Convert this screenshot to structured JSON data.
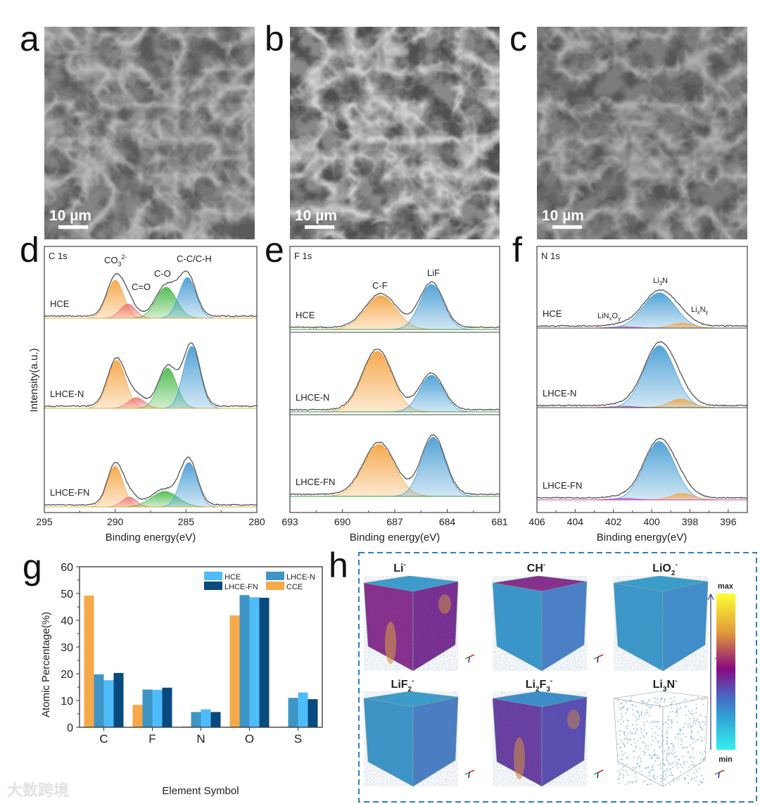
{
  "panel_letters": {
    "a": "a",
    "b": "b",
    "c": "c",
    "d": "d",
    "e": "e",
    "f": "f",
    "g": "g",
    "h": "h"
  },
  "sem": {
    "scale_bar": "10 µm"
  },
  "chart_data": [
    {
      "type": "line",
      "panel": "d",
      "title": "C 1s",
      "xlabel": "Binding energy(eV)",
      "ylabel": "Intensity(a.u.)",
      "xlim": [
        295,
        280
      ],
      "xticks": [
        295,
        290,
        285,
        280
      ],
      "annotations": [
        [
          "CO",
          "3",
          "2-"
        ],
        [
          "C=O"
        ],
        [
          "C-O"
        ],
        [
          "C-C/C-H"
        ]
      ],
      "samples": [
        {
          "name": "HCE",
          "peaks": [
            {
              "annotation": 0,
              "center": 290.0,
              "amp": 54,
              "fwhm": 1.4,
              "color": "#f5a646"
            },
            {
              "annotation": 1,
              "center": 289.1,
              "amp": 20,
              "fwhm": 1.3,
              "color": "#f07a7a"
            },
            {
              "annotation": 2,
              "center": 286.4,
              "amp": 44,
              "fwhm": 1.7,
              "color": "#4cbb4c"
            },
            {
              "annotation": 3,
              "center": 284.9,
              "amp": 58,
              "fwhm": 1.4,
              "color": "#4b9fd5"
            }
          ]
        },
        {
          "name": "LHCE-N",
          "peaks": [
            {
              "annotation": 0,
              "center": 289.9,
              "amp": 68,
              "fwhm": 1.5,
              "color": "#f5a646"
            },
            {
              "annotation": 1,
              "center": 288.5,
              "amp": 15,
              "fwhm": 1.4,
              "color": "#f07a7a"
            },
            {
              "annotation": 2,
              "center": 286.3,
              "amp": 57,
              "fwhm": 1.5,
              "color": "#4cbb4c"
            },
            {
              "annotation": 3,
              "center": 284.6,
              "amp": 88,
              "fwhm": 1.4,
              "color": "#4b9fd5"
            }
          ]
        },
        {
          "name": "LHCE-FN",
          "peaks": [
            {
              "annotation": 0,
              "center": 290.0,
              "amp": 58,
              "fwhm": 1.3,
              "color": "#f5a646"
            },
            {
              "annotation": 1,
              "center": 289.0,
              "amp": 14,
              "fwhm": 1.2,
              "color": "#f07a7a"
            },
            {
              "annotation": 2,
              "center": 286.5,
              "amp": 22,
              "fwhm": 2.2,
              "color": "#4cbb4c"
            },
            {
              "annotation": 3,
              "center": 284.8,
              "amp": 63,
              "fwhm": 1.4,
              "color": "#4b9fd5"
            }
          ]
        }
      ]
    },
    {
      "type": "line",
      "panel": "e",
      "title": "F 1s",
      "xlabel": "Binding energy(eV)",
      "xlim": [
        693,
        681
      ],
      "xticks": [
        693,
        690,
        687,
        684,
        681
      ],
      "annotations": [
        [
          "C-F"
        ],
        [
          "LiF"
        ]
      ],
      "samples": [
        {
          "name": "HCE",
          "peaks": [
            {
              "annotation": 0,
              "center": 687.8,
              "amp": 48,
              "fwhm": 2.1,
              "color": "#f5a646"
            },
            {
              "annotation": 1,
              "center": 684.9,
              "amp": 64,
              "fwhm": 1.6,
              "color": "#4b9fd5"
            }
          ]
        },
        {
          "name": "LHCE-N",
          "peaks": [
            {
              "annotation": 0,
              "center": 688.0,
              "amp": 86,
              "fwhm": 2.0,
              "color": "#f5a646"
            },
            {
              "annotation": 1,
              "center": 684.9,
              "amp": 52,
              "fwhm": 1.6,
              "color": "#4b9fd5"
            }
          ]
        },
        {
          "name": "LHCE-FN",
          "peaks": [
            {
              "annotation": 0,
              "center": 687.9,
              "amp": 74,
              "fwhm": 2.1,
              "color": "#f5a646"
            },
            {
              "annotation": 1,
              "center": 684.8,
              "amp": 84,
              "fwhm": 1.6,
              "color": "#4b9fd5"
            }
          ]
        }
      ]
    },
    {
      "type": "line",
      "panel": "f",
      "title": "N 1s",
      "xlabel": "Binding energy(eV)",
      "xlim": [
        406,
        395
      ],
      "xticks": [
        406,
        404,
        402,
        400,
        398,
        396
      ],
      "annotations": [
        [
          "Li",
          "3",
          "N"
        ],
        [
          "LiN",
          "x",
          "O",
          "y"
        ],
        [
          "Li",
          "x",
          "N",
          "y"
        ]
      ],
      "samples": [
        {
          "name": "HCE",
          "peaks": [
            {
              "annotation": 1,
              "center": 401.5,
              "amp": 2,
              "fwhm": 1.5,
              "color": "#d63aa8"
            },
            {
              "annotation": 0,
              "center": 399.6,
              "amp": 50,
              "fwhm": 2.0,
              "color": "#4b9fd5"
            },
            {
              "annotation": 2,
              "center": 398.4,
              "amp": 7,
              "fwhm": 1.4,
              "color": "#f5a646"
            }
          ]
        },
        {
          "name": "LHCE-N",
          "peaks": [
            {
              "annotation": 1,
              "center": 401.5,
              "amp": 2,
              "fwhm": 1.5,
              "color": "#d63aa8"
            },
            {
              "annotation": 0,
              "center": 399.6,
              "amp": 88,
              "fwhm": 1.9,
              "color": "#4b9fd5"
            },
            {
              "annotation": 2,
              "center": 398.5,
              "amp": 12,
              "fwhm": 1.4,
              "color": "#f5a646"
            }
          ]
        },
        {
          "name": "LHCE-FN",
          "peaks": [
            {
              "annotation": 1,
              "center": 401.5,
              "amp": 2,
              "fwhm": 1.5,
              "color": "#d63aa8"
            },
            {
              "annotation": 0,
              "center": 399.6,
              "amp": 83,
              "fwhm": 1.9,
              "color": "#4b9fd5"
            },
            {
              "annotation": 2,
              "center": 398.4,
              "amp": 9,
              "fwhm": 1.4,
              "color": "#f5a646"
            }
          ]
        }
      ]
    },
    {
      "type": "bar",
      "panel": "g",
      "xlabel": "Element Symbol",
      "ylabel": "Atomic Percentage(%)",
      "ylim": [
        0,
        60
      ],
      "yticks": [
        0,
        10,
        20,
        30,
        40,
        50,
        60
      ],
      "categories": [
        "C",
        "F",
        "N",
        "O",
        "S"
      ],
      "legend_position": "top-right",
      "series": [
        {
          "name": "CCE",
          "color": "#f5a94a",
          "values": [
            49.2,
            8.4,
            0.3,
            41.8,
            0.2
          ]
        },
        {
          "name": "LHCE-N",
          "color": "#3f95c6",
          "values": [
            19.8,
            14.1,
            5.7,
            49.4,
            11.0
          ]
        },
        {
          "name": "HCE",
          "color": "#4fbcfa",
          "values": [
            17.6,
            14.0,
            6.7,
            48.6,
            13.0
          ]
        },
        {
          "name": "LHCE-FN",
          "color": "#084a7e",
          "values": [
            20.3,
            14.8,
            5.7,
            48.4,
            10.5
          ]
        }
      ],
      "legend_order": [
        "HCE",
        "LHCE-N",
        "LHCE-FN",
        "CCE"
      ]
    }
  ],
  "tof_sims": {
    "labels": [
      [
        "Li",
        "-"
      ],
      [
        "CH",
        "-"
      ],
      [
        "LiO",
        "2",
        "-"
      ],
      [
        "LiF",
        "2",
        "-"
      ],
      [
        "Li",
        "2",
        "F",
        "3",
        "-"
      ],
      [
        "Li",
        "3",
        "N",
        "-"
      ]
    ],
    "colorbar": {
      "max": "max",
      "min": "min",
      "colors": [
        "#ffff33",
        "#e09a3a",
        "#8a0a80",
        "#4a63c0",
        "#2fa6d8",
        "#33f0f0"
      ]
    }
  },
  "watermark": "大数跨境"
}
